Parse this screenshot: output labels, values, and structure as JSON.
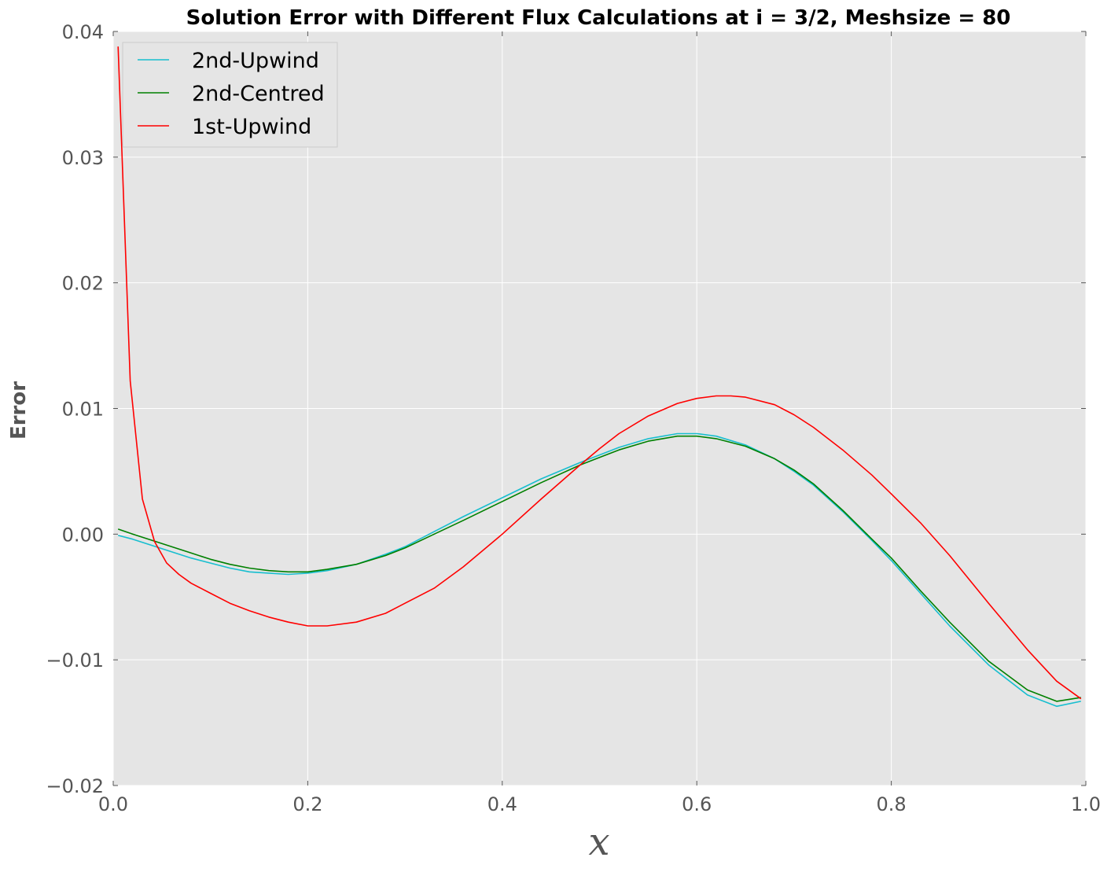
{
  "chart_data": {
    "type": "line",
    "title": "Solution Error with Different Flux Calculations at i = 3/2, Meshsize = 80",
    "xlabel": "x",
    "ylabel": "Error",
    "xlim": [
      0.0,
      1.0
    ],
    "ylim": [
      -0.02,
      0.04
    ],
    "xticks": [
      0.0,
      0.2,
      0.4,
      0.6,
      0.8,
      1.0
    ],
    "xtick_labels": [
      "0.0",
      "0.2",
      "0.4",
      "0.6",
      "0.8",
      "1.0"
    ],
    "yticks": [
      -0.02,
      -0.01,
      0.0,
      0.01,
      0.02,
      0.03,
      0.04
    ],
    "ytick_labels": [
      "−0.02",
      "−0.01",
      "0.00",
      "0.01",
      "0.02",
      "0.03",
      "0.04"
    ],
    "grid": true,
    "legend_position": "top-left",
    "series": [
      {
        "name": "2nd-Upwind",
        "color": "#17becf",
        "x": [
          0.005,
          0.02,
          0.04,
          0.06,
          0.08,
          0.1,
          0.12,
          0.14,
          0.16,
          0.18,
          0.2,
          0.22,
          0.25,
          0.28,
          0.3,
          0.33,
          0.36,
          0.4,
          0.44,
          0.48,
          0.5,
          0.52,
          0.55,
          0.58,
          0.6,
          0.62,
          0.65,
          0.68,
          0.7,
          0.72,
          0.75,
          0.78,
          0.8,
          0.83,
          0.86,
          0.9,
          0.94,
          0.97,
          0.995
        ],
        "y": [
          -0.0001,
          -0.0004,
          -0.0009,
          -0.0014,
          -0.0019,
          -0.0023,
          -0.0027,
          -0.003,
          -0.0031,
          -0.0032,
          -0.0031,
          -0.0029,
          -0.0024,
          -0.0016,
          -0.001,
          0.0002,
          0.0014,
          0.0029,
          0.0044,
          0.0057,
          0.0063,
          0.0069,
          0.0076,
          0.008,
          0.008,
          0.0078,
          0.0071,
          0.006,
          0.005,
          0.0039,
          0.0018,
          -0.0005,
          -0.0021,
          -0.0047,
          -0.0073,
          -0.0104,
          -0.0128,
          -0.0137,
          -0.0133
        ]
      },
      {
        "name": "2nd-Centred",
        "color": "#008000",
        "x": [
          0.005,
          0.02,
          0.04,
          0.06,
          0.08,
          0.1,
          0.12,
          0.14,
          0.16,
          0.18,
          0.2,
          0.22,
          0.25,
          0.28,
          0.3,
          0.33,
          0.36,
          0.4,
          0.44,
          0.48,
          0.5,
          0.52,
          0.55,
          0.58,
          0.6,
          0.62,
          0.65,
          0.68,
          0.7,
          0.72,
          0.75,
          0.78,
          0.8,
          0.83,
          0.86,
          0.9,
          0.94,
          0.97,
          0.995
        ],
        "y": [
          0.0004,
          0.0,
          -0.0005,
          -0.001,
          -0.0015,
          -0.002,
          -0.0024,
          -0.0027,
          -0.0029,
          -0.003,
          -0.003,
          -0.0028,
          -0.0024,
          -0.0017,
          -0.0011,
          0.0,
          0.0011,
          0.0026,
          0.0041,
          0.0055,
          0.0061,
          0.0067,
          0.0074,
          0.0078,
          0.0078,
          0.0076,
          0.007,
          0.006,
          0.0051,
          0.004,
          0.0019,
          -0.0004,
          -0.0019,
          -0.0045,
          -0.007,
          -0.0101,
          -0.0124,
          -0.0133,
          -0.013
        ]
      },
      {
        "name": "1st-Upwind",
        "color": "#ff0000",
        "x": [
          0.005,
          0.0175,
          0.03,
          0.0425,
          0.055,
          0.0675,
          0.08,
          0.1,
          0.12,
          0.14,
          0.16,
          0.18,
          0.2,
          0.22,
          0.25,
          0.28,
          0.3,
          0.33,
          0.36,
          0.4,
          0.44,
          0.48,
          0.5,
          0.52,
          0.55,
          0.58,
          0.6,
          0.62,
          0.635,
          0.65,
          0.68,
          0.7,
          0.72,
          0.75,
          0.78,
          0.8,
          0.83,
          0.86,
          0.9,
          0.94,
          0.97,
          0.995
        ],
        "y": [
          0.0388,
          0.0122,
          0.0028,
          -0.0006,
          -0.0023,
          -0.0032,
          -0.0039,
          -0.0047,
          -0.0055,
          -0.0061,
          -0.0066,
          -0.007,
          -0.0073,
          -0.0073,
          -0.007,
          -0.0063,
          -0.0055,
          -0.0043,
          -0.0026,
          0.0,
          0.0028,
          0.0055,
          0.0068,
          0.008,
          0.0094,
          0.0104,
          0.0108,
          0.011,
          0.011,
          0.0109,
          0.0103,
          0.0095,
          0.0085,
          0.0067,
          0.0047,
          0.0032,
          0.0009,
          -0.0017,
          -0.0055,
          -0.0092,
          -0.0117,
          -0.0131
        ]
      }
    ]
  }
}
